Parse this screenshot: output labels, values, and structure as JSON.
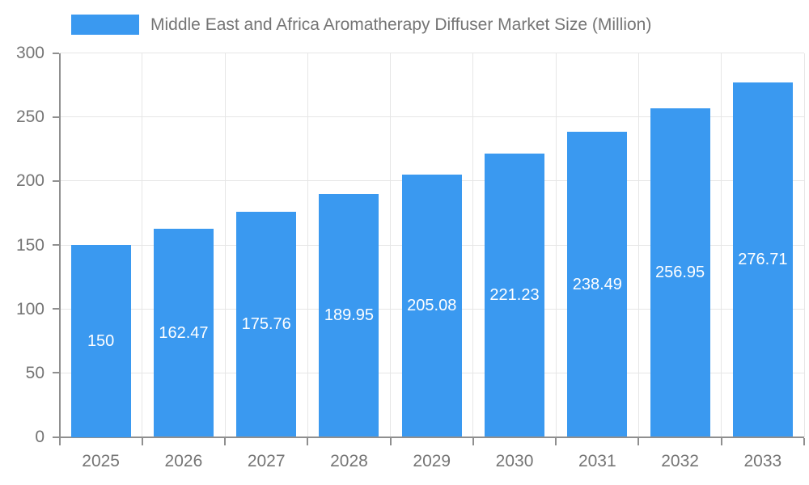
{
  "legend": {
    "label": "Middle East and Africa Aromatherapy Diffuser Market Size (Million)"
  },
  "colors": {
    "bar": "#3a99f0",
    "axis": "#8f8f8f",
    "grid": "#e6e6e6",
    "text": "#757575",
    "value_label": "#ffffff",
    "background": "#ffffff"
  },
  "chart_data": {
    "type": "bar",
    "title": "Middle East and Africa Aromatherapy Diffuser Market Size (Million)",
    "categories": [
      "2025",
      "2026",
      "2027",
      "2028",
      "2029",
      "2030",
      "2031",
      "2032",
      "2033"
    ],
    "values": [
      150,
      162.47,
      175.76,
      189.95,
      205.08,
      221.23,
      238.49,
      256.95,
      276.71
    ],
    "series": [
      {
        "name": "Middle East and Africa Aromatherapy Diffuser Market Size (Million)",
        "values": [
          150,
          162.47,
          175.76,
          189.95,
          205.08,
          221.23,
          238.49,
          256.95,
          276.71
        ]
      }
    ],
    "value_label_texts": [
      "150",
      "162.47",
      "175.76",
      "189.95",
      "205.08",
      "221.23",
      "238.49",
      "256.95",
      "276.71"
    ],
    "xlabel": "",
    "ylabel": "",
    "ylim": [
      0,
      300
    ],
    "ytick_step": 50,
    "ytick_labels": [
      "0",
      "50",
      "100",
      "150",
      "200",
      "250",
      "300"
    ],
    "grid": true,
    "legend_position": "top",
    "value_label_position": "inside-center"
  }
}
